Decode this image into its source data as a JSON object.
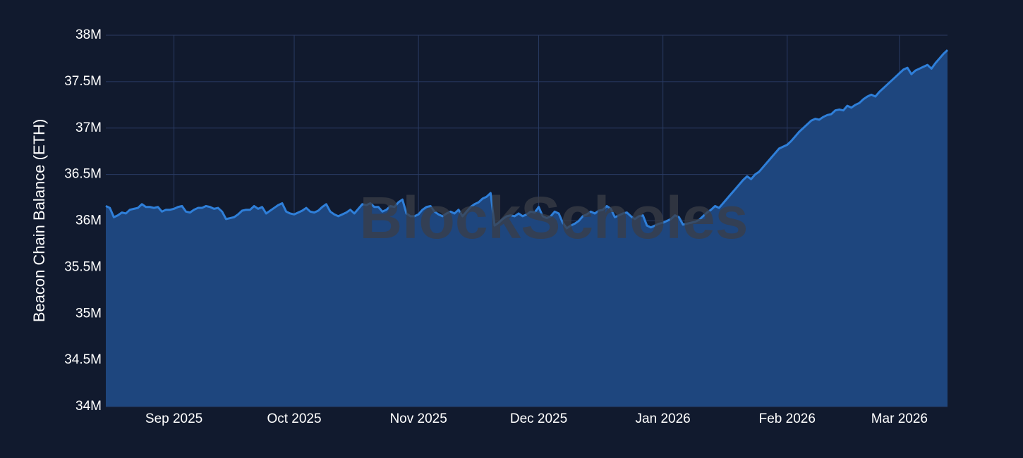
{
  "chart_data": {
    "type": "area",
    "y_label": "Beacon Chain Balance (ETH)",
    "watermark": "BlockScholes",
    "color": "#2f7fd9",
    "area_color": "#1e467e",
    "grid": true,
    "ylim": [
      34000000,
      38000000
    ],
    "yticks": [
      {
        "value": 34000000,
        "label": "34M"
      },
      {
        "value": 34500000,
        "label": "34.5M"
      },
      {
        "value": 35000000,
        "label": "35M"
      },
      {
        "value": 35500000,
        "label": "35.5M"
      },
      {
        "value": 36000000,
        "label": "36M"
      },
      {
        "value": 36500000,
        "label": "36.5M"
      },
      {
        "value": 37000000,
        "label": "37M"
      },
      {
        "value": 37500000,
        "label": "37.5M"
      },
      {
        "value": 38000000,
        "label": "38M"
      }
    ],
    "categories": [
      null,
      null,
      null,
      null,
      null,
      null,
      null,
      null,
      null,
      null,
      null,
      null,
      null,
      null,
      null,
      null,
      null,
      "Sep 2025",
      null,
      null,
      null,
      null,
      null,
      null,
      null,
      null,
      null,
      null,
      null,
      null,
      null,
      null,
      null,
      null,
      null,
      null,
      null,
      null,
      null,
      null,
      null,
      null,
      null,
      null,
      null,
      null,
      null,
      "Oct 2025",
      null,
      null,
      null,
      null,
      null,
      null,
      null,
      null,
      null,
      null,
      null,
      null,
      null,
      null,
      null,
      null,
      null,
      null,
      null,
      null,
      null,
      null,
      null,
      null,
      null,
      null,
      null,
      null,
      null,
      null,
      "Nov 2025",
      null,
      null,
      null,
      null,
      null,
      null,
      null,
      null,
      null,
      null,
      null,
      null,
      null,
      null,
      null,
      null,
      null,
      null,
      null,
      null,
      null,
      null,
      null,
      null,
      null,
      null,
      null,
      null,
      null,
      "Dec 2025",
      null,
      null,
      null,
      null,
      null,
      null,
      null,
      null,
      null,
      null,
      null,
      null,
      null,
      null,
      null,
      null,
      null,
      null,
      null,
      null,
      null,
      null,
      null,
      null,
      null,
      null,
      null,
      null,
      null,
      null,
      "Jan 2026",
      null,
      null,
      null,
      null,
      null,
      null,
      null,
      null,
      null,
      null,
      null,
      null,
      null,
      null,
      null,
      null,
      null,
      null,
      null,
      null,
      null,
      null,
      null,
      null,
      null,
      null,
      null,
      null,
      null,
      null,
      "Feb 2026",
      null,
      null,
      null,
      null,
      null,
      null,
      null,
      null,
      null,
      null,
      null,
      null,
      null,
      null,
      null,
      null,
      null,
      null,
      null,
      null,
      null,
      null,
      null,
      null,
      null,
      null,
      null,
      "Mar 2026",
      null,
      null,
      null,
      null,
      null,
      null,
      null,
      null,
      null,
      null,
      null,
      null
    ],
    "values": [
      36160000,
      36140000,
      36040000,
      36060000,
      36090000,
      36080000,
      36120000,
      36130000,
      36140000,
      36180000,
      36150000,
      36150000,
      36140000,
      36150000,
      36100000,
      36120000,
      36120000,
      36130000,
      36150000,
      36160000,
      36100000,
      36090000,
      36120000,
      36140000,
      36140000,
      36160000,
      36150000,
      36130000,
      36140000,
      36100000,
      36020000,
      36030000,
      36040000,
      36070000,
      36110000,
      36120000,
      36120000,
      36160000,
      36130000,
      36150000,
      36080000,
      36110000,
      36140000,
      36170000,
      36190000,
      36100000,
      36080000,
      36070000,
      36090000,
      36110000,
      36140000,
      36100000,
      36090000,
      36110000,
      36150000,
      36180000,
      36100000,
      36070000,
      36050000,
      36070000,
      36090000,
      36120000,
      36080000,
      36130000,
      36180000,
      36170000,
      36190000,
      36150000,
      36150000,
      36100000,
      36120000,
      36160000,
      36150000,
      36200000,
      36230000,
      36080000,
      36050000,
      36050000,
      36070000,
      36120000,
      36150000,
      36160000,
      36100000,
      36070000,
      36050000,
      36080000,
      36100000,
      36080000,
      36120000,
      36050000,
      36100000,
      36150000,
      36180000,
      36200000,
      36240000,
      36260000,
      36300000,
      35950000,
      35980000,
      36020000,
      36050000,
      36060000,
      36050000,
      36080000,
      36050000,
      36070000,
      36100000,
      36090000,
      36150000,
      36050000,
      36030000,
      36050000,
      36100000,
      36080000,
      35980000,
      35920000,
      35950000,
      35970000,
      36000000,
      36050000,
      36070000,
      36100000,
      36080000,
      36110000,
      36120000,
      36160000,
      36130000,
      36040000,
      36060000,
      36080000,
      36090000,
      36050000,
      36020000,
      36050000,
      36060000,
      35950000,
      35930000,
      35950000,
      35970000,
      35980000,
      36000000,
      36020000,
      36060000,
      36040000,
      35960000,
      35970000,
      35980000,
      35990000,
      36010000,
      36050000,
      36090000,
      36120000,
      36160000,
      36140000,
      36190000,
      36240000,
      36290000,
      36340000,
      36390000,
      36440000,
      36480000,
      36450000,
      36500000,
      36530000,
      36580000,
      36630000,
      36680000,
      36730000,
      36780000,
      36800000,
      36820000,
      36860000,
      36910000,
      36960000,
      37000000,
      37040000,
      37080000,
      37100000,
      37090000,
      37120000,
      37140000,
      37150000,
      37190000,
      37200000,
      37190000,
      37240000,
      37220000,
      37250000,
      37270000,
      37310000,
      37340000,
      37360000,
      37340000,
      37390000,
      37430000,
      37470000,
      37510000,
      37550000,
      37590000,
      37630000,
      37650000,
      37580000,
      37620000,
      37640000,
      37660000,
      37680000,
      37640000,
      37700000,
      37750000,
      37800000,
      37840000
    ]
  }
}
